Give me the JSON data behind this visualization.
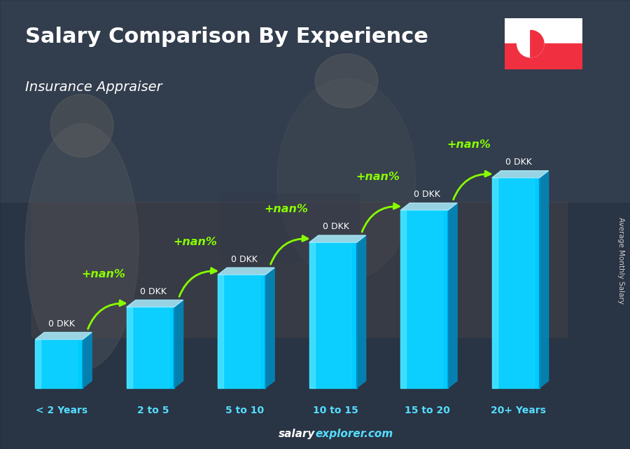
{
  "title": "Salary Comparison By Experience",
  "subtitle": "Insurance Appraiser",
  "ylabel": "Average Monthly Salary",
  "xlabel_labels": [
    "< 2 Years",
    "2 to 5",
    "5 to 10",
    "10 to 15",
    "15 to 20",
    "20+ Years"
  ],
  "bar_heights": [
    1.5,
    2.5,
    3.5,
    4.5,
    5.5,
    6.5
  ],
  "bar_color_front": "#00ccff",
  "bar_color_light": "#55ddff",
  "bar_color_right": "#0088bb",
  "bar_color_top": "#aaeeff",
  "bar_values": [
    "0 DKK",
    "0 DKK",
    "0 DKK",
    "0 DKK",
    "0 DKK",
    "0 DKK"
  ],
  "increase_labels": [
    "+nan%",
    "+nan%",
    "+nan%",
    "+nan%",
    "+nan%"
  ],
  "bg_color": "#4a5a6a",
  "overlay_alpha": 0.45,
  "title_color": "#ffffff",
  "subtitle_color": "#ffffff",
  "value_color": "#ffffff",
  "increase_color": "#88ff00",
  "footer_salary_color": "#ffffff",
  "footer_explorer_color": "#55ddff",
  "footer_text": "salaryexplorer.com",
  "flag_white": "#ffffff",
  "flag_red": "#f03040",
  "ylabel_color": "#cccccc"
}
